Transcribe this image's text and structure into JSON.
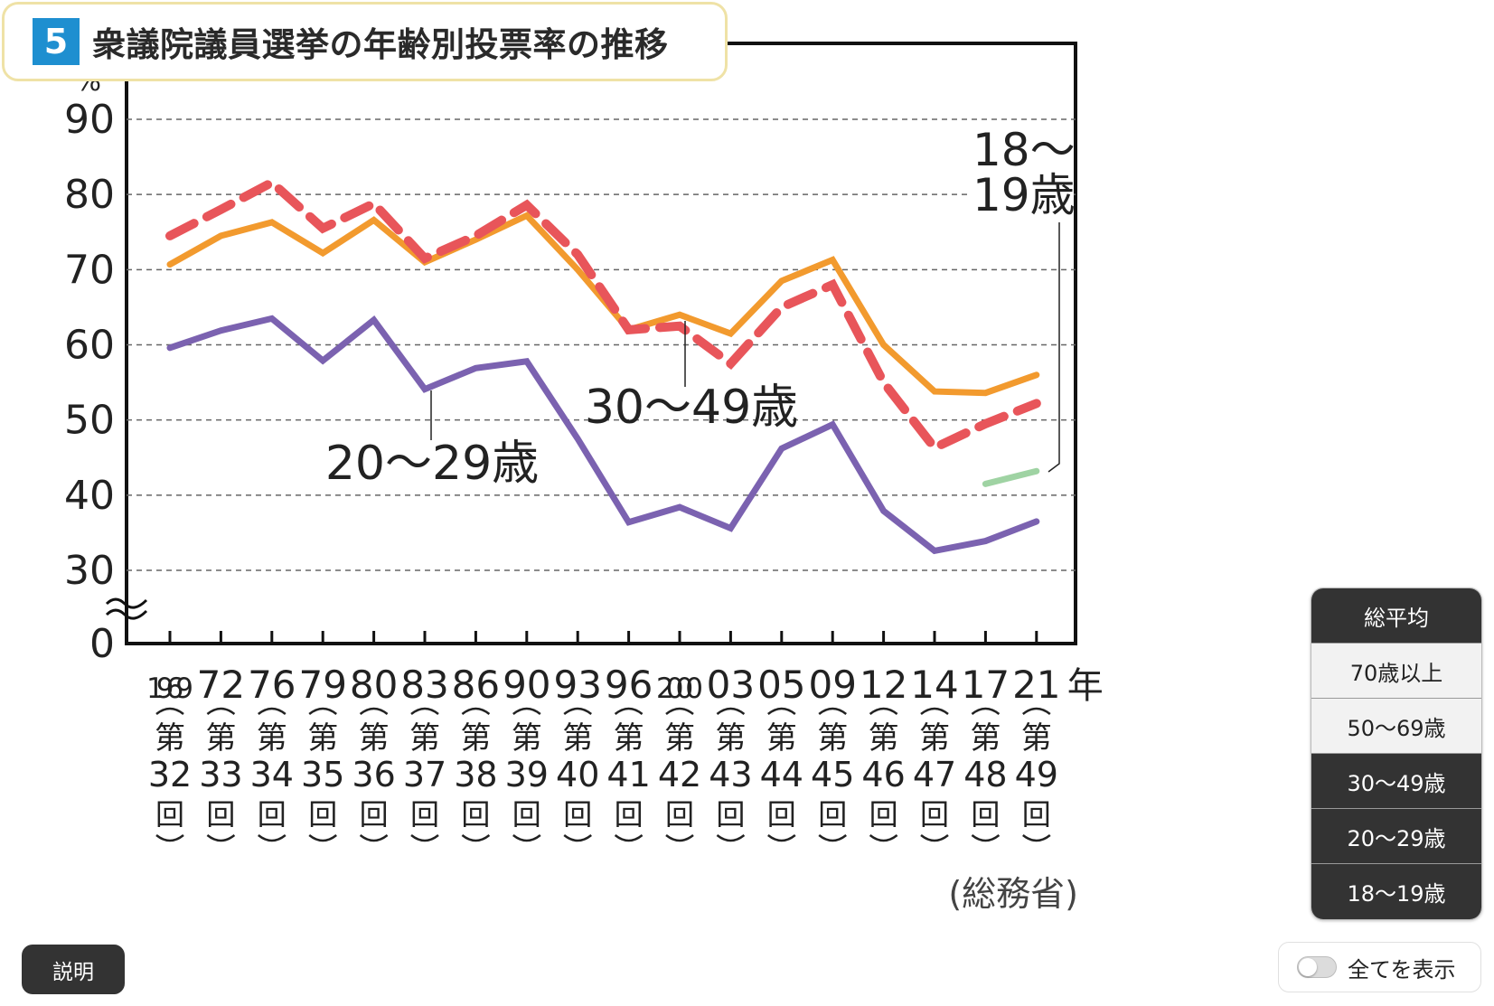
{
  "title": {
    "number": "5",
    "text": "衆議院議員選挙の年齢別投票率の推移"
  },
  "chart_data": {
    "type": "line",
    "title": "衆議院議員選挙の年齢別投票率の推移",
    "ylabel": "%",
    "ylim": [
      30,
      90
    ],
    "y_zero_label": "0",
    "y_ticks": [
      "30",
      "40",
      "50",
      "60",
      "70",
      "80",
      "90"
    ],
    "grid": "horizontal dashed",
    "x_year_labels": [
      "1969",
      "72",
      "76",
      "79",
      "80",
      "83",
      "86",
      "90",
      "93",
      "96",
      "2000",
      "03",
      "05",
      "09",
      "12",
      "14",
      "17",
      "21"
    ],
    "x_year_suffix": "年",
    "x_session_numbers": [
      "32",
      "33",
      "34",
      "35",
      "36",
      "37",
      "38",
      "39",
      "40",
      "41",
      "42",
      "43",
      "44",
      "45",
      "46",
      "47",
      "48",
      "49"
    ],
    "x_session_prefix": "第",
    "x_session_suffix": "回",
    "series": [
      {
        "name": "30～49歳",
        "color": "#f29a2e",
        "style": "solid",
        "label_on_chart": true,
        "values": [
          70.7,
          74.5,
          76.3,
          72.2,
          76.6,
          71.0,
          74.0,
          77.2,
          70.0,
          62.0,
          64.0,
          61.5,
          68.5,
          71.3,
          60.0,
          53.8,
          53.6,
          56.0
        ]
      },
      {
        "name": "",
        "color": "#e8555a",
        "style": "dashed",
        "label_on_chart": false,
        "values": [
          74.5,
          78.0,
          81.6,
          75.5,
          78.8,
          71.5,
          74.5,
          78.6,
          72.0,
          62.0,
          62.5,
          57.5,
          65.0,
          68.0,
          55.0,
          46.3,
          49.5,
          52.2
        ]
      },
      {
        "name": "20～29歳",
        "color": "#7b62b0",
        "style": "solid",
        "label_on_chart": true,
        "values": [
          59.6,
          61.9,
          63.5,
          57.9,
          63.3,
          54.1,
          56.9,
          57.8,
          47.5,
          36.4,
          38.4,
          35.6,
          46.2,
          49.4,
          37.9,
          32.6,
          33.9,
          36.5
        ]
      },
      {
        "name": "18～19歳",
        "color": "#9fd3a3",
        "style": "solid",
        "label_on_chart": true,
        "values": [
          null,
          null,
          null,
          null,
          null,
          null,
          null,
          null,
          null,
          null,
          null,
          null,
          null,
          null,
          null,
          null,
          41.5,
          43.2
        ]
      }
    ],
    "annotations": {
      "series_label_30_49": "30～49歳",
      "series_label_20_29": "20～29歳",
      "series_label_18_19_line1": "18～",
      "series_label_18_19_line2": "19歳"
    },
    "source": "(総務省)"
  },
  "legend": {
    "items": [
      {
        "label": "総平均",
        "state": "on"
      },
      {
        "label": "70歳以上",
        "state": "off"
      },
      {
        "label": "50～69歳",
        "state": "off"
      },
      {
        "label": "30～49歳",
        "state": "on"
      },
      {
        "label": "20～29歳",
        "state": "on"
      },
      {
        "label": "18～19歳",
        "state": "on"
      }
    ]
  },
  "toggle": {
    "label": "全てを表示",
    "checked": false
  },
  "explain_button": {
    "label": "説明"
  }
}
